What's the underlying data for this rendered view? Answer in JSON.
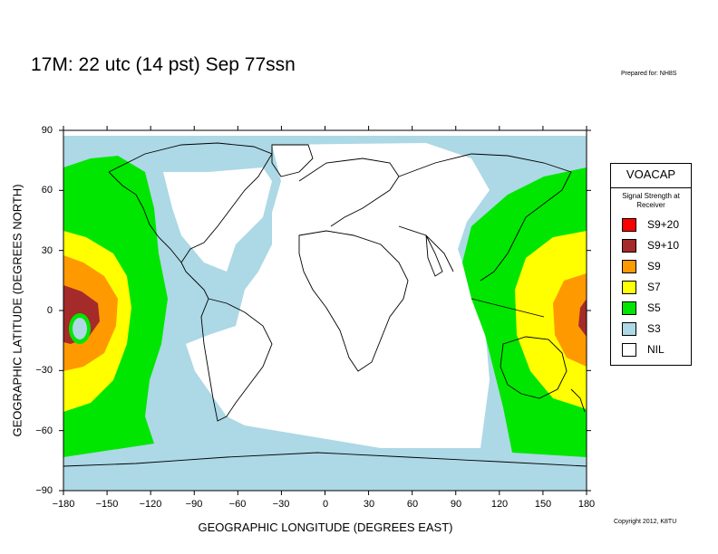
{
  "title": "17M:  22 utc (14 pst) Sep 77ssn",
  "prepared_for": "Prepared for: NH8S",
  "copyright": "Copyright 2012, K8TU",
  "axes": {
    "xlabel": "GEOGRAPHIC LONGITUDE (DEGREES EAST)",
    "ylabel": "GEOGRAPHIC LATITUDE (DEGREES NORTH)",
    "xticks": [
      "−180",
      "−150",
      "−120",
      "−90",
      "−60",
      "−30",
      "0",
      "30",
      "60",
      "90",
      "120",
      "150",
      "180"
    ],
    "yticks": [
      "90",
      "60",
      "30",
      "0",
      "−30",
      "−60",
      "−90"
    ],
    "xlim": [
      -180,
      180
    ],
    "ylim": [
      -90,
      90
    ]
  },
  "legend": {
    "title": "VOACAP",
    "subtitle": "Signal Strength at Receiver",
    "items": [
      {
        "label": "S9+20",
        "color": "#ff0000"
      },
      {
        "label": "S9+10",
        "color": "#a52a2a"
      },
      {
        "label": "S9",
        "color": "#ff9900"
      },
      {
        "label": "S7",
        "color": "#ffff00"
      },
      {
        "label": "S5",
        "color": "#00e600"
      },
      {
        "label": "S3",
        "color": "#add8e6"
      },
      {
        "label": "NIL",
        "color": "#ffffff"
      }
    ]
  },
  "map": {
    "ocean_color": "#add8e6",
    "land_color": "#ffffff",
    "coast_color": "#000000"
  }
}
